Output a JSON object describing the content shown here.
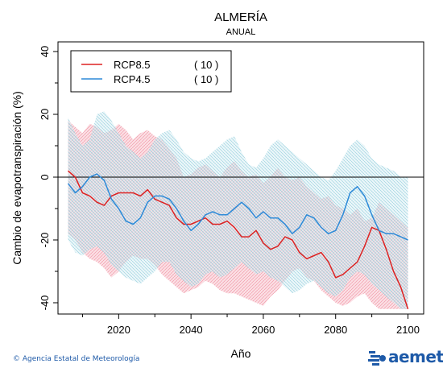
{
  "chart_data": {
    "type": "line",
    "title": "ALMERÍA",
    "subtitle": "ANUAL",
    "xlabel": "Año",
    "ylabel": "Cambio de evapotranspiración (%)",
    "xlim": [
      2005,
      2101
    ],
    "ylim": [
      -42,
      40
    ],
    "xticks": [
      2020,
      2040,
      2060,
      2080,
      2100
    ],
    "yticks": [
      -40,
      -20,
      0,
      20,
      40
    ],
    "legend_position": "top-left",
    "series": [
      {
        "name": "RCP8.5",
        "count": "( 10 )",
        "color": "#dd2222",
        "band_color": "#f4b9c4",
        "x": [
          2006,
          2008,
          2010,
          2012,
          2014,
          2016,
          2018,
          2020,
          2022,
          2024,
          2026,
          2028,
          2030,
          2032,
          2034,
          2036,
          2038,
          2040,
          2042,
          2044,
          2046,
          2048,
          2050,
          2052,
          2054,
          2056,
          2058,
          2060,
          2062,
          2064,
          2066,
          2068,
          2070,
          2072,
          2074,
          2076,
          2078,
          2080,
          2082,
          2084,
          2086,
          2088,
          2090,
          2092,
          2094,
          2096,
          2098,
          2100
        ],
        "values": [
          2,
          0,
          -5,
          -6,
          -8,
          -9,
          -6,
          -5,
          -5,
          -5,
          -6,
          -4,
          -7,
          -8,
          -9,
          -13,
          -15,
          -15,
          -14,
          -13,
          -15,
          -15,
          -14,
          -16,
          -19,
          -19,
          -17,
          -21,
          -23,
          -22,
          -19,
          -20,
          -24,
          -26,
          -25,
          -24,
          -27,
          -32,
          -31,
          -29,
          -27,
          -22,
          -16,
          -17,
          -23,
          -30,
          -35,
          -42
        ],
        "upper": [
          18,
          16,
          14,
          17,
          16,
          14,
          15,
          17,
          15,
          12,
          14,
          15,
          13,
          12,
          9,
          6,
          0,
          1,
          3,
          4,
          2,
          0,
          3,
          5,
          2,
          0,
          1,
          -2,
          0,
          3,
          0,
          -1,
          0,
          -3,
          -5,
          -7,
          -6,
          -9,
          -10,
          -12,
          -10,
          -14,
          -13,
          -8,
          -10,
          -12,
          -14,
          -16
        ],
        "lower": [
          -18,
          -20,
          -24,
          -26,
          -27,
          -29,
          -32,
          -30,
          -27,
          -25,
          -26,
          -26,
          -28,
          -31,
          -33,
          -35,
          -37,
          -36,
          -35,
          -33,
          -34,
          -36,
          -37,
          -37,
          -38,
          -39,
          -40,
          -41,
          -38,
          -36,
          -33,
          -30,
          -29,
          -32,
          -33,
          -36,
          -38,
          -40,
          -41,
          -40,
          -38,
          -37,
          -40,
          -42,
          -42,
          -42,
          -42,
          -42
        ]
      },
      {
        "name": "RCP4.5",
        "count": "( 10 )",
        "color": "#2d8ad8",
        "band_color": "#b7dfe8",
        "x": [
          2006,
          2008,
          2010,
          2012,
          2014,
          2016,
          2018,
          2020,
          2022,
          2024,
          2026,
          2028,
          2030,
          2032,
          2034,
          2036,
          2038,
          2040,
          2042,
          2044,
          2046,
          2048,
          2050,
          2052,
          2054,
          2056,
          2058,
          2060,
          2062,
          2064,
          2066,
          2068,
          2070,
          2072,
          2074,
          2076,
          2078,
          2080,
          2082,
          2084,
          2086,
          2088,
          2090,
          2092,
          2094,
          2096,
          2098,
          2100
        ],
        "values": [
          -2,
          -5,
          -3,
          0,
          1,
          -1,
          -7,
          -10,
          -14,
          -15,
          -13,
          -8,
          -6,
          -6,
          -7,
          -10,
          -14,
          -17,
          -15,
          -12,
          -11,
          -12,
          -12,
          -10,
          -8,
          -10,
          -13,
          -11,
          -13,
          -13,
          -15,
          -18,
          -16,
          -12,
          -13,
          -16,
          -18,
          -17,
          -12,
          -5,
          -3,
          -6,
          -12,
          -17,
          -18,
          -18,
          -19,
          -20
        ],
        "upper": [
          19,
          14,
          10,
          12,
          20,
          21,
          18,
          14,
          10,
          8,
          6,
          8,
          12,
          14,
          15,
          12,
          8,
          6,
          5,
          6,
          8,
          10,
          12,
          13,
          8,
          4,
          3,
          6,
          10,
          12,
          10,
          8,
          6,
          4,
          2,
          0,
          -1,
          2,
          6,
          10,
          12,
          10,
          6,
          4,
          3,
          2,
          0,
          0
        ],
        "lower": [
          -20,
          -24,
          -25,
          -23,
          -22,
          -24,
          -28,
          -30,
          -32,
          -33,
          -34,
          -32,
          -30,
          -27,
          -27,
          -31,
          -33,
          -35,
          -34,
          -31,
          -30,
          -32,
          -31,
          -29,
          -27,
          -29,
          -31,
          -30,
          -32,
          -33,
          -35,
          -37,
          -36,
          -34,
          -33,
          -35,
          -37,
          -38,
          -36,
          -32,
          -30,
          -31,
          -34,
          -36,
          -38,
          -40,
          -42,
          -42
        ]
      }
    ]
  },
  "footer": {
    "credit": "© Agencia Estatal de Meteorología",
    "logo_text": "aemet"
  }
}
